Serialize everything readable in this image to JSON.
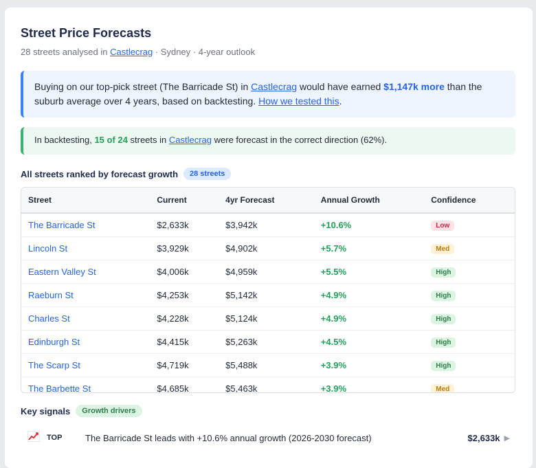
{
  "header": {
    "title": "Street Price Forecasts",
    "subtitle_count": "28 streets analysed in",
    "suburb": "Castlecrag",
    "subtitle_rest": "· Sydney · 4-year outlook"
  },
  "info_box": {
    "text_1": "Buying on our top-pick street (The Barricade St) in",
    "suburb": "Castlecrag",
    "text_2": "would have earned",
    "amount": "$1,147k more",
    "text_3": "than the suburb average over 4 years, based on backtesting.",
    "link": "How we tested this",
    "end": "."
  },
  "backtest_box": {
    "text_1": "In backtesting,",
    "stat": "15 of 24",
    "text_2": "streets in",
    "suburb": "Castlecrag",
    "text_3": "were forecast in the correct direction (62%)."
  },
  "ranking": {
    "heading": "All streets ranked by forecast growth",
    "badge": "28 streets",
    "columns": [
      "Street",
      "Current",
      "4yr Forecast",
      "Annual Growth",
      "Confidence"
    ],
    "rows": [
      {
        "street": "The Barricade St",
        "current": "$2,633k",
        "forecast": "$3,942k",
        "growth": "+10.6%",
        "confidence": "Low"
      },
      {
        "street": "Lincoln St",
        "current": "$3,929k",
        "forecast": "$4,902k",
        "growth": "+5.7%",
        "confidence": "Med"
      },
      {
        "street": "Eastern Valley St",
        "current": "$4,006k",
        "forecast": "$4,959k",
        "growth": "+5.5%",
        "confidence": "High"
      },
      {
        "street": "Raeburn St",
        "current": "$4,253k",
        "forecast": "$5,142k",
        "growth": "+4.9%",
        "confidence": "High"
      },
      {
        "street": "Charles St",
        "current": "$4,228k",
        "forecast": "$5,124k",
        "growth": "+4.9%",
        "confidence": "High"
      },
      {
        "street": "Edinburgh St",
        "current": "$4,415k",
        "forecast": "$5,263k",
        "growth": "+4.5%",
        "confidence": "High"
      },
      {
        "street": "The Scarp St",
        "current": "$4,719k",
        "forecast": "$5,488k",
        "growth": "+3.9%",
        "confidence": "High"
      },
      {
        "street": "The Barbette St",
        "current": "$4,685k",
        "forecast": "$5,463k",
        "growth": "+3.9%",
        "confidence": "Med"
      }
    ]
  },
  "signals": {
    "heading": "Key signals",
    "badge": "Growth drivers",
    "items": [
      {
        "icon": "chart-increasing-icon",
        "tag": "TOP",
        "text": "The Barricade St leads with +10.6% annual growth (2026-2030 forecast)",
        "value": "$2,633k"
      }
    ]
  },
  "colors": {
    "accent": "#2563eb",
    "positive": "#22a05a",
    "low": "#c0283f",
    "med": "#c07a13",
    "high": "#2e7d4a"
  }
}
